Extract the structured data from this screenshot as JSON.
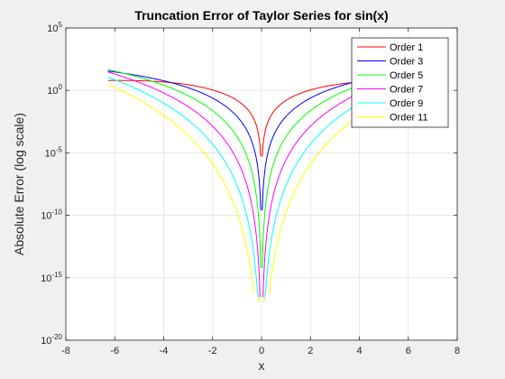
{
  "chart_data": {
    "type": "line",
    "title": "Truncation Error of Taylor Series for sin(x)",
    "xlabel": "x",
    "ylabel": "Absolute Error (log scale)",
    "xlim": [
      -8,
      8
    ],
    "ylim": [
      1e-20,
      100000.0
    ],
    "yscale": "log",
    "grid": true,
    "legend_position": "top-right",
    "xticks": [
      "-8",
      "-6",
      "-4",
      "-2",
      "0",
      "2",
      "4",
      "6",
      "8"
    ],
    "yticks": [
      {
        "base": "10",
        "exp": "-20"
      },
      {
        "base": "10",
        "exp": "-15"
      },
      {
        "base": "10",
        "exp": "-10"
      },
      {
        "base": "10",
        "exp": "-5"
      },
      {
        "base": "10",
        "exp": "0"
      },
      {
        "base": "10",
        "exp": "5"
      }
    ],
    "x_domain": [
      -6.2832,
      6.2832
    ],
    "series": [
      {
        "name": "Order 1",
        "order": 1,
        "color": "#ff0000"
      },
      {
        "name": "Order 3",
        "order": 3,
        "color": "#0000ff"
      },
      {
        "name": "Order 5",
        "order": 5,
        "color": "#00ff00"
      },
      {
        "name": "Order 7",
        "order": 7,
        "color": "#ff00ff"
      },
      {
        "name": "Order 9",
        "order": 9,
        "color": "#00ffff"
      },
      {
        "name": "Order 11",
        "order": 11,
        "color": "#ffff00"
      }
    ]
  }
}
